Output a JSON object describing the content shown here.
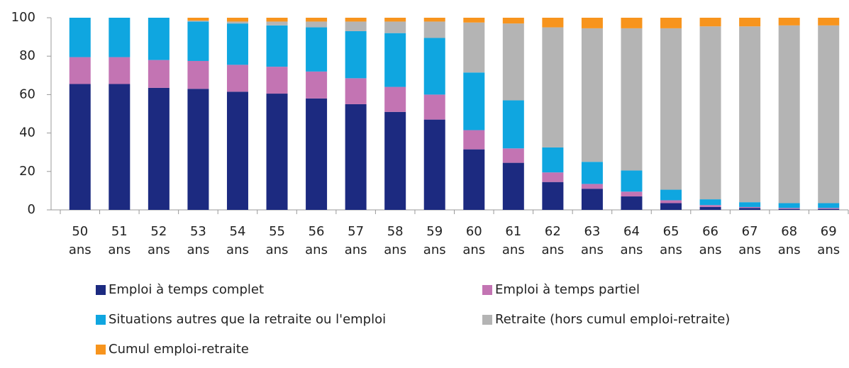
{
  "chart_data": {
    "type": "stacked_bar",
    "categories": [
      "50 ans",
      "51 ans",
      "52 ans",
      "53 ans",
      "54 ans",
      "55 ans",
      "56 ans",
      "57 ans",
      "58 ans",
      "59 ans",
      "60 ans",
      "61 ans",
      "62 ans",
      "63 ans",
      "64 ans",
      "65 ans",
      "66 ans",
      "67 ans",
      "68 ans",
      "69 ans"
    ],
    "series": [
      {
        "name": "Emploi à temps complet",
        "color": "#1c2a80",
        "values": [
          65.5,
          65.5,
          63.5,
          63,
          61.5,
          60.5,
          58,
          55,
          51,
          47,
          31.5,
          24.5,
          14.5,
          11,
          7,
          3.5,
          1.5,
          1,
          0.5,
          0.5
        ]
      },
      {
        "name": "Emploi à temps partiel",
        "color": "#c374b3",
        "values": [
          14,
          14,
          14.5,
          14.5,
          14,
          14,
          14,
          13.5,
          13,
          13,
          10,
          7.5,
          5,
          2.5,
          2.5,
          1.5,
          1,
          0.5,
          0.5,
          0.5
        ]
      },
      {
        "name": "Situations autres que la retraite ou l'emploi",
        "color": "#0fa6e0",
        "values": [
          20.5,
          20.5,
          22,
          20.5,
          21.5,
          21.5,
          23,
          24.5,
          28,
          29.5,
          30,
          25,
          13,
          11.5,
          11,
          5.5,
          3,
          2.5,
          2.5,
          2.5
        ]
      },
      {
        "name": "Retraite (hors cumul emploi-retraite)",
        "color": "#b4b4b4",
        "values": [
          0,
          0,
          0,
          0.5,
          1,
          2,
          3,
          5,
          6,
          8.5,
          26,
          40,
          62.5,
          69.5,
          74,
          84,
          90,
          91.5,
          92.5,
          92.5
        ]
      },
      {
        "name": "Cumul emploi-retraite",
        "color": "#f7941d",
        "values": [
          0,
          0,
          0,
          1.5,
          2,
          2,
          2,
          2,
          2,
          2,
          2.5,
          3,
          5,
          5.5,
          5.5,
          5.5,
          4.5,
          4.5,
          4,
          4
        ]
      }
    ],
    "ylim": [
      0,
      100
    ],
    "yticks": [
      0,
      20,
      40,
      60,
      80,
      100
    ],
    "grid": false
  }
}
